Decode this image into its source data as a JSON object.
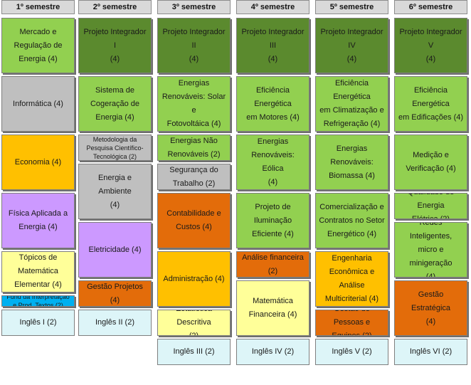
{
  "colors": {
    "dark_green": "#5b8a2e",
    "light_green": "#92d050",
    "gray": "#bfbfbf",
    "orange_yellow": "#ffc000",
    "dark_orange": "#e36c0a",
    "purple": "#cc99ff",
    "yellow": "#ffff99",
    "blue": "#00b0f0",
    "light_cyan": "#ddf5f8"
  },
  "headers": [
    "1º semestre",
    "2º semestre",
    "3º semestre",
    "4º semestre",
    "5º semestre",
    "6º semestre"
  ],
  "cells": [
    {
      "col": 0,
      "row": 0,
      "span": 4,
      "color": "light_green",
      "text": "Mercado e\nRegulação de\nEnergia  (4)"
    },
    {
      "col": 0,
      "row": 4,
      "span": 4,
      "color": "gray",
      "text": "Informática  (4)"
    },
    {
      "col": 0,
      "row": 8,
      "span": 4,
      "color": "orange_yellow",
      "text": "Economia  (4)"
    },
    {
      "col": 0,
      "row": 12,
      "span": 4,
      "color": "purple",
      "text": "Física Aplicada a\nEnergia   (4)"
    },
    {
      "col": 0,
      "row": 16,
      "span": 3,
      "color": "yellow",
      "text": "Tópicos de\nMatemática\nElementar  (4)"
    },
    {
      "col": 0,
      "row": 19,
      "span": 1,
      "color": "blue",
      "text": "Fund da Interpretação\ne Prod. Textos (2)",
      "small": true
    },
    {
      "col": 0,
      "row": 20,
      "span": 2,
      "color": "light_cyan",
      "text": "Inglês  I  (2)"
    },
    {
      "col": 1,
      "row": 0,
      "span": 4,
      "color": "dark_green",
      "text": "Projeto Integrador I\n(4)"
    },
    {
      "col": 1,
      "row": 4,
      "span": 4,
      "color": "light_green",
      "text": "Sistema de\nCogeração de\nEnergia  (4)"
    },
    {
      "col": 1,
      "row": 8,
      "span": 2,
      "color": "gray",
      "text": "Metodologia da\nPesquisa Científico-\nTecnológica  (2)",
      "small": true
    },
    {
      "col": 1,
      "row": 10,
      "span": 4,
      "color": "gray",
      "text": "Energia e Ambiente\n(4)"
    },
    {
      "col": 1,
      "row": 14,
      "span": 4,
      "color": "purple",
      "text": "Eletricidade  (4)"
    },
    {
      "col": 1,
      "row": 18,
      "span": 2,
      "color": "dark_orange",
      "text": "Gestão Projetos  (4)"
    },
    {
      "col": 1,
      "row": 20,
      "span": 2,
      "color": "light_cyan",
      "text": "Inglês  II  (2)"
    },
    {
      "col": 2,
      "row": 0,
      "span": 4,
      "color": "dark_green",
      "text": "Projeto Integrador II\n(4)"
    },
    {
      "col": 2,
      "row": 4,
      "span": 4,
      "color": "light_green",
      "text": "Energias\nRenováveis: Solar e\nFotovoltáica (4)"
    },
    {
      "col": 2,
      "row": 8,
      "span": 2,
      "color": "light_green",
      "text": "Energias Não\nRenováveis  (2)"
    },
    {
      "col": 2,
      "row": 10,
      "span": 2,
      "color": "gray",
      "text": "Segurança do\nTrabalho  (2)"
    },
    {
      "col": 2,
      "row": 12,
      "span": 4,
      "color": "dark_orange",
      "text": "Contabilidade e\nCustos  (4)"
    },
    {
      "col": 2,
      "row": 16,
      "span": 4,
      "color": "orange_yellow",
      "text": "Administração  (4)"
    },
    {
      "col": 2,
      "row": 20,
      "span": 2,
      "color": "yellow",
      "text": "Estatística Descritiva\n(2)"
    },
    {
      "col": 2,
      "row": 22,
      "span": 2,
      "color": "light_cyan",
      "text": "Inglês  III  (2)"
    },
    {
      "col": 3,
      "row": 0,
      "span": 4,
      "color": "dark_green",
      "text": "Projeto Integrador III\n(4)"
    },
    {
      "col": 3,
      "row": 4,
      "span": 4,
      "color": "light_green",
      "text": "Eficiência Energética\nem Motores (4)"
    },
    {
      "col": 3,
      "row": 8,
      "span": 4,
      "color": "light_green",
      "text": "Energias\nRenováveis: Eólica\n(4)"
    },
    {
      "col": 3,
      "row": 12,
      "span": 4,
      "color": "light_green",
      "text": "Projeto de Iluminação\nEficiente  (4)"
    },
    {
      "col": 3,
      "row": 16,
      "span": 2,
      "color": "dark_orange",
      "text": "Análise financeira (2)"
    },
    {
      "col": 3,
      "row": 18,
      "span": 4,
      "color": "yellow",
      "text": "Matemática\nFinanceira  (4)"
    },
    {
      "col": 3,
      "row": 22,
      "span": 2,
      "color": "light_cyan",
      "text": "Inglês  IV  (2)"
    },
    {
      "col": 4,
      "row": 0,
      "span": 4,
      "color": "dark_green",
      "text": "Projeto Integrador IV\n(4)"
    },
    {
      "col": 4,
      "row": 4,
      "span": 4,
      "color": "light_green",
      "text": "Eficiência Energética\nem Climatização e\nRefrigeração (4)"
    },
    {
      "col": 4,
      "row": 8,
      "span": 4,
      "color": "light_green",
      "text": "Energias\nRenováveis:\nBiomassa (4)"
    },
    {
      "col": 4,
      "row": 12,
      "span": 4,
      "color": "light_green",
      "text": "Comercialização e\nContratos no Setor\nEnergético  (4)"
    },
    {
      "col": 4,
      "row": 16,
      "span": 4,
      "color": "orange_yellow",
      "text": "Engenharia\nEconômica e Análise\nMulticriterial  (4)"
    },
    {
      "col": 4,
      "row": 20,
      "span": 2,
      "color": "dark_orange",
      "text": "Gestão de Pessoas e\nEquipes  (2)"
    },
    {
      "col": 4,
      "row": 22,
      "span": 2,
      "color": "light_cyan",
      "text": "Inglês  V  (2)"
    },
    {
      "col": 5,
      "row": 0,
      "span": 4,
      "color": "dark_green",
      "text": "Projeto Integrador V\n(4)"
    },
    {
      "col": 5,
      "row": 4,
      "span": 4,
      "color": "light_green",
      "text": "Eficiência Energética\nem Edificações (4)"
    },
    {
      "col": 5,
      "row": 8,
      "span": 4,
      "color": "light_green",
      "text": "Medição e\nVerificação  (4)"
    },
    {
      "col": 5,
      "row": 12,
      "span": 2,
      "color": "light_green",
      "text": "Qualidade de Energia\nElétrica (2)"
    },
    {
      "col": 5,
      "row": 14,
      "span": 4,
      "color": "light_green",
      "text": "Redes Inteligentes,\nmicro e minigeração\n(4)"
    },
    {
      "col": 5,
      "row": 18,
      "span": 4,
      "color": "dark_orange",
      "text": "Gestão Estratégica\n(4)"
    },
    {
      "col": 5,
      "row": 22,
      "span": 2,
      "color": "light_cyan",
      "text": "Inglês  VI  (2)"
    }
  ]
}
